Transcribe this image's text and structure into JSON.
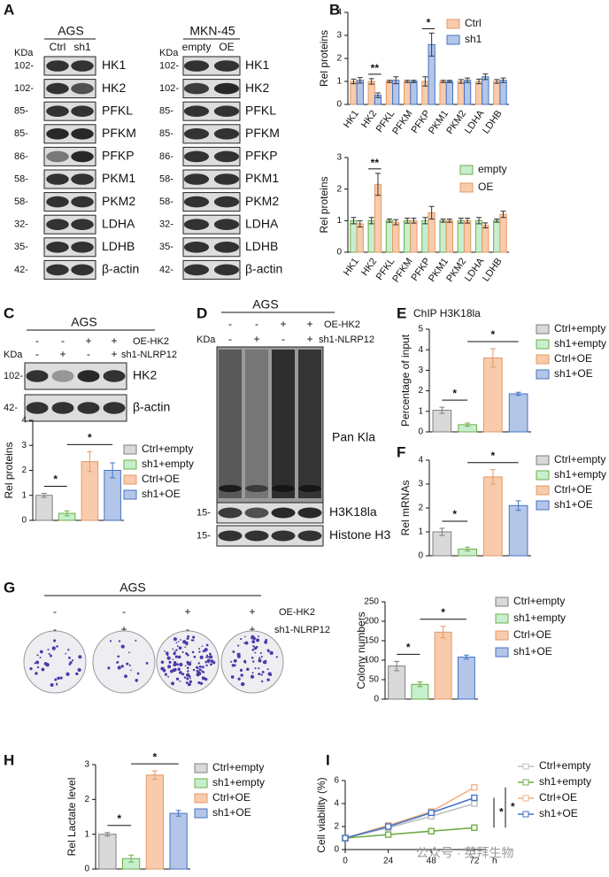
{
  "panel_labels": [
    "A",
    "B",
    "C",
    "D",
    "E",
    "F",
    "G",
    "H",
    "I"
  ],
  "blots": {
    "A_left": {
      "header": "AGS",
      "unit": "KDa",
      "lanes": [
        "Ctrl",
        "sh1"
      ],
      "rows": [
        {
          "marker": "102-",
          "protein": "HK1"
        },
        {
          "marker": "102-",
          "protein": "HK2"
        },
        {
          "marker": "85-",
          "protein": "PFKL"
        },
        {
          "marker": "85-",
          "protein": "PFKM"
        },
        {
          "marker": "86-",
          "protein": "PFKP"
        },
        {
          "marker": "58-",
          "protein": "PKM1"
        },
        {
          "marker": "58-",
          "protein": "PKM2"
        },
        {
          "marker": "32-",
          "protein": "LDHA"
        },
        {
          "marker": "35-",
          "protein": "LDHB"
        },
        {
          "marker": "42-",
          "protein": "β-actin"
        }
      ]
    },
    "A_right": {
      "header": "MKN-45",
      "unit": "KDa",
      "lanes": [
        "empty",
        "OE"
      ],
      "rows": [
        {
          "marker": "102-",
          "protein": "HK1"
        },
        {
          "marker": "102-",
          "protein": "HK2"
        },
        {
          "marker": "85-",
          "protein": "PFKL"
        },
        {
          "marker": "85-",
          "protein": "PFKM"
        },
        {
          "marker": "86-",
          "protein": "PFKP"
        },
        {
          "marker": "58-",
          "protein": "PKM1"
        },
        {
          "marker": "58-",
          "protein": "PKM2"
        },
        {
          "marker": "32-",
          "protein": "LDHA"
        },
        {
          "marker": "35-",
          "protein": "LDHB"
        },
        {
          "marker": "42-",
          "protein": "β-actin"
        }
      ]
    },
    "C": {
      "header": "AGS",
      "unit": "KDa",
      "conditions": [
        {
          "name": "OE-HK2",
          "signs": [
            "-",
            "-",
            "+",
            "+"
          ]
        },
        {
          "name": "sh1-NLRP12",
          "signs": [
            "-",
            "+",
            "-",
            "+"
          ]
        }
      ],
      "rows": [
        {
          "marker": "102-",
          "protein": "HK2"
        },
        {
          "marker": "42-",
          "protein": "β-actin"
        }
      ]
    },
    "D": {
      "header": "AGS",
      "unit": "KDa",
      "conditions": [
        {
          "name": "OE-HK2",
          "signs": [
            "-",
            "-",
            "+",
            "+"
          ]
        },
        {
          "name": "sh1-NLRP12",
          "signs": [
            "-",
            "+",
            "-",
            "+"
          ]
        }
      ],
      "rows": [
        {
          "protein": "Pan Kla"
        },
        {
          "marker": "15-",
          "protein": "H3K18la"
        },
        {
          "marker": "15-",
          "protein": "Histone H3"
        }
      ]
    },
    "G": {
      "header": "AGS",
      "conditions": [
        {
          "name": "OE-HK2",
          "signs": [
            "-",
            "-",
            "+",
            "+"
          ]
        },
        {
          "name": "sh1-NLRP12",
          "signs": [
            "-",
            "+",
            "-",
            "+"
          ]
        }
      ]
    }
  },
  "chart_data": [
    {
      "type": "bar",
      "ylabel": "Rel  proteins",
      "categories": [
        "HK1",
        "HK2",
        "PFKL",
        "PFKM",
        "PFKP",
        "PKM1",
        "PKM2",
        "LDHA",
        "LDHB"
      ],
      "series": [
        {
          "name": "Ctrl",
          "color": "#f8cbad",
          "edge_color": "#e39a66",
          "values": [
            1,
            1,
            1,
            1,
            1,
            1,
            1,
            1,
            1
          ],
          "errors": [
            0.1,
            0.12,
            0.05,
            0.05,
            0.2,
            0.05,
            0.08,
            0.1,
            0.08
          ]
        },
        {
          "name": "sh1",
          "color": "#b4c6e7",
          "edge_color": "#4472c4",
          "values": [
            1.05,
            0.4,
            1.05,
            1,
            2.6,
            1,
            1.05,
            1.2,
            1.05
          ],
          "errors": [
            0.12,
            0.1,
            0.15,
            0.05,
            0.5,
            0.05,
            0.1,
            0.12,
            0.1
          ]
        }
      ],
      "ylim": [
        0,
        4
      ],
      "yticks": [
        0,
        1,
        2,
        3,
        4
      ],
      "annotations": [
        "**",
        "*"
      ]
    },
    {
      "type": "bar",
      "ylabel": "Rel  proteins",
      "categories": [
        "HK1",
        "HK2",
        "PFKL",
        "PFKM",
        "PFKP",
        "PKM1",
        "PKM2",
        "LDHA",
        "LDHB"
      ],
      "series": [
        {
          "name": "empty",
          "color": "#c6efce",
          "edge_color": "#70ad47",
          "values": [
            1,
            1,
            1,
            1,
            1,
            1,
            1,
            1,
            1
          ],
          "errors": [
            0.1,
            0.1,
            0.05,
            0.08,
            0.1,
            0.05,
            0.08,
            0.1,
            0.05
          ]
        },
        {
          "name": "OE",
          "color": "#f8cbad",
          "edge_color": "#e39a66",
          "values": [
            0.9,
            2.15,
            0.95,
            1,
            1.25,
            1,
            1,
            0.85,
            1.2
          ],
          "errors": [
            0.1,
            0.35,
            0.08,
            0.08,
            0.2,
            0.05,
            0.08,
            0.08,
            0.1
          ]
        }
      ],
      "ylim": [
        0,
        3
      ],
      "yticks": [
        0,
        1,
        2,
        3
      ],
      "annotations": [
        "**"
      ]
    },
    {
      "type": "bar",
      "ylabel": "Rel  proteins",
      "categories": [
        "Ctrl+empty",
        "sh1+empty",
        "Ctrl+OE",
        "sh1+OE"
      ],
      "colors": [
        "#d9d9d9",
        "#c6efce",
        "#f8cbad",
        "#b4c6e7"
      ],
      "edge_colors": [
        "#7f7f7f",
        "#70ad47",
        "#e39a66",
        "#4472c4"
      ],
      "values": [
        1,
        0.28,
        2.35,
        2
      ],
      "errors": [
        0.08,
        0.1,
        0.4,
        0.3
      ],
      "ylim": [
        0,
        4
      ],
      "yticks": [
        0,
        1,
        2,
        3,
        4
      ],
      "annotations": [
        "*",
        "*"
      ]
    },
    {
      "type": "bar",
      "title": "ChIP H3K18la",
      "ylabel": "Percentage of input",
      "categories": [
        "Ctrl+empty",
        "sh1+empty",
        "Ctrl+OE",
        "sh1+OE"
      ],
      "colors": [
        "#d9d9d9",
        "#c6efce",
        "#f8cbad",
        "#b4c6e7"
      ],
      "edge_colors": [
        "#7f7f7f",
        "#70ad47",
        "#e39a66",
        "#4472c4"
      ],
      "values": [
        1.05,
        0.35,
        3.6,
        1.85
      ],
      "errors": [
        0.15,
        0.08,
        0.45,
        0.08
      ],
      "ylim": [
        0,
        5
      ],
      "yticks": [
        0,
        1,
        2,
        3,
        4,
        5
      ],
      "annotations": [
        "*",
        "*"
      ]
    },
    {
      "type": "bar",
      "ylabel": "Rel mRNAs",
      "categories": [
        "Ctrl+empty",
        "sh1+empty",
        "Ctrl+OE",
        "sh1+OE"
      ],
      "colors": [
        "#d9d9d9",
        "#c6efce",
        "#f8cbad",
        "#b4c6e7"
      ],
      "edge_colors": [
        "#7f7f7f",
        "#70ad47",
        "#e39a66",
        "#4472c4"
      ],
      "values": [
        1,
        0.28,
        3.3,
        2.1
      ],
      "errors": [
        0.15,
        0.08,
        0.3,
        0.2
      ],
      "ylim": [
        0,
        4
      ],
      "yticks": [
        0,
        1,
        2,
        3,
        4
      ],
      "annotations": [
        "*",
        "*"
      ]
    },
    {
      "type": "bar",
      "ylabel": "Colony numbers",
      "categories": [
        "Ctrl+empty",
        "sh1+empty",
        "Ctrl+OE",
        "sh1+OE"
      ],
      "colors": [
        "#d9d9d9",
        "#c6efce",
        "#f8cbad",
        "#b4c6e7"
      ],
      "edge_colors": [
        "#7f7f7f",
        "#70ad47",
        "#e39a66",
        "#4472c4"
      ],
      "values": [
        85,
        38,
        172,
        108
      ],
      "errors": [
        12,
        6,
        15,
        5
      ],
      "ylim": [
        0,
        250
      ],
      "yticks": [
        0,
        50,
        100,
        150,
        200,
        250
      ],
      "annotations": [
        "*",
        "*"
      ]
    },
    {
      "type": "bar",
      "ylabel": "Rel Lactate level",
      "categories": [
        "Ctrl+empty",
        "sh1+empty",
        "Ctrl+OE",
        "sh1+OE"
      ],
      "colors": [
        "#d9d9d9",
        "#c6efce",
        "#f8cbad",
        "#b4c6e7"
      ],
      "edge_colors": [
        "#7f7f7f",
        "#70ad47",
        "#e39a66",
        "#4472c4"
      ],
      "values": [
        1,
        0.3,
        2.7,
        1.6
      ],
      "errors": [
        0.05,
        0.1,
        0.12,
        0.08
      ],
      "ylim": [
        0,
        3
      ],
      "yticks": [
        0,
        1,
        2,
        3
      ],
      "annotations": [
        "*",
        "*"
      ]
    },
    {
      "type": "line",
      "ylabel": "Cell viability (%)",
      "xlabel": "h",
      "x": [
        0,
        24,
        48,
        72
      ],
      "xlim": [
        0,
        78
      ],
      "xticks": [
        0,
        24,
        48,
        72
      ],
      "ylim": [
        0,
        6
      ],
      "yticks": [
        0,
        2,
        4,
        6
      ],
      "series": [
        {
          "name": "Ctrl+empty",
          "color": "#bfbfbf",
          "values": [
            1,
            1.9,
            2.9,
            4
          ]
        },
        {
          "name": "sh1+empty",
          "color": "#70ad47",
          "values": [
            1,
            1.3,
            1.6,
            1.9
          ]
        },
        {
          "name": "Ctrl+OE",
          "color": "#f4b183",
          "values": [
            1,
            2.1,
            3.3,
            5.4
          ]
        },
        {
          "name": "sh1+OE",
          "color": "#4472c4",
          "values": [
            1,
            2,
            3.2,
            4.5
          ]
        }
      ],
      "annotations": [
        "*",
        "*"
      ]
    }
  ],
  "watermark": "公众号 · 英拜生物"
}
